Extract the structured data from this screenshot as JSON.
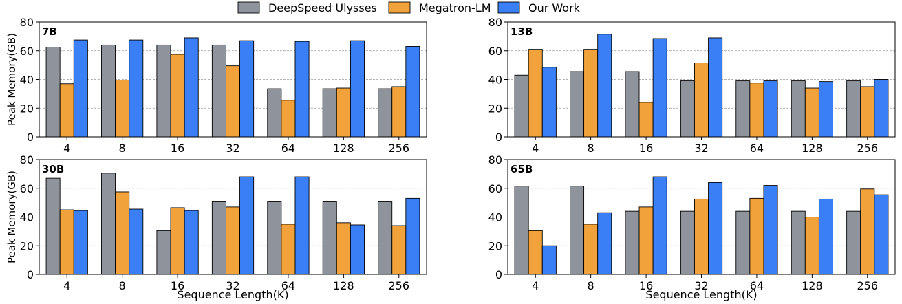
{
  "legend": {
    "placement": "top-center",
    "entries": [
      {
        "name": "DeepSpeed Ulysses",
        "color": "#8f949c"
      },
      {
        "name": "Megatron-LM",
        "color": "#f2a23a"
      },
      {
        "name": "Our Work",
        "color": "#3a7ff5"
      }
    ]
  },
  "xlabel": "Sequence Length(K)",
  "ylabel": "Peak Memory(GB)",
  "chart_data": [
    {
      "type": "bar",
      "title": "7B",
      "categories": [
        "4",
        "8",
        "16",
        "32",
        "64",
        "128",
        "256"
      ],
      "series": [
        {
          "name": "DeepSpeed Ulysses",
          "values": [
            62.5,
            64,
            64,
            64,
            33.5,
            33.5,
            33.5
          ]
        },
        {
          "name": "Megatron-LM",
          "values": [
            37,
            39.5,
            57.5,
            49.5,
            25.5,
            34,
            35
          ]
        },
        {
          "name": "Our Work",
          "values": [
            67.5,
            67.5,
            69,
            67,
            66.5,
            67,
            63
          ]
        }
      ],
      "ylim": [
        0,
        80
      ],
      "yticks": [
        0,
        20,
        40,
        60,
        80
      ],
      "grid": true
    },
    {
      "type": "bar",
      "title": "13B",
      "categories": [
        "4",
        "8",
        "16",
        "32",
        "64",
        "128",
        "256"
      ],
      "series": [
        {
          "name": "DeepSpeed Ulysses",
          "values": [
            43,
            45.5,
            45.5,
            39,
            39,
            39,
            39
          ]
        },
        {
          "name": "Megatron-LM",
          "values": [
            61,
            61,
            24,
            51.5,
            37.5,
            34,
            35
          ]
        },
        {
          "name": "Our Work",
          "values": [
            48.5,
            71.5,
            68.5,
            69,
            39,
            38.5,
            40
          ]
        }
      ],
      "ylim": [
        0,
        80
      ],
      "yticks": [
        0,
        20,
        40,
        60,
        80
      ],
      "grid": true
    },
    {
      "type": "bar",
      "title": "30B",
      "categories": [
        "4",
        "8",
        "16",
        "32",
        "64",
        "128",
        "256"
      ],
      "series": [
        {
          "name": "DeepSpeed Ulysses",
          "values": [
            67,
            70.5,
            30.5,
            51,
            51,
            51,
            51
          ]
        },
        {
          "name": "Megatron-LM",
          "values": [
            45,
            57.5,
            46.5,
            47,
            35,
            36,
            34
          ]
        },
        {
          "name": "Our Work",
          "values": [
            44.5,
            45.5,
            44.5,
            68,
            68,
            34.5,
            53
          ]
        }
      ],
      "ylim": [
        0,
        80
      ],
      "yticks": [
        0,
        20,
        40,
        60,
        80
      ],
      "grid": true
    },
    {
      "type": "bar",
      "title": "65B",
      "categories": [
        "4",
        "8",
        "16",
        "32",
        "64",
        "128",
        "256"
      ],
      "series": [
        {
          "name": "DeepSpeed Ulysses",
          "values": [
            61.5,
            61.5,
            44,
            44,
            44,
            44,
            44
          ]
        },
        {
          "name": "Megatron-LM",
          "values": [
            30.5,
            35,
            47,
            52.5,
            53,
            40,
            59.5
          ]
        },
        {
          "name": "Our Work",
          "values": [
            20,
            43,
            68,
            64,
            62,
            52.5,
            55.5
          ]
        }
      ],
      "ylim": [
        0,
        80
      ],
      "yticks": [
        0,
        20,
        40,
        60,
        80
      ],
      "grid": true
    }
  ]
}
